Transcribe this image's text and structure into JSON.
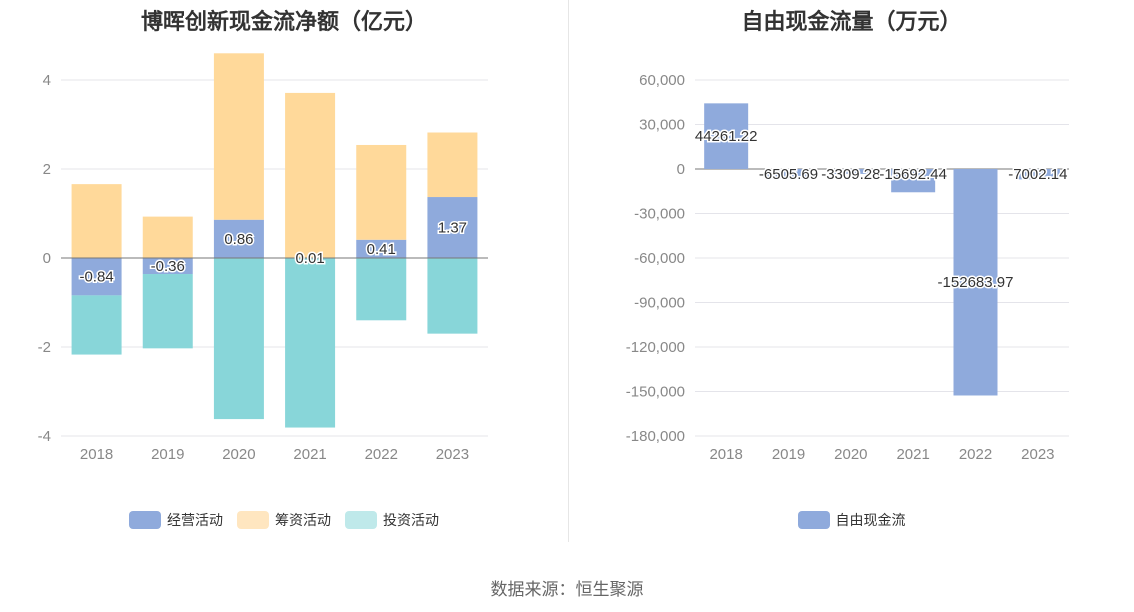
{
  "source_label": "数据来源：恒生聚源",
  "chart_data": [
    {
      "type": "bar",
      "stacked": true,
      "title": "博晖创新现金流净额（亿元）",
      "categories": [
        "2018",
        "2019",
        "2020",
        "2021",
        "2022",
        "2023"
      ],
      "ylim": [
        -4,
        4
      ],
      "yticks": [
        "4",
        "2",
        "0",
        "-2",
        "-4"
      ],
      "series": [
        {
          "name": "经营活动",
          "color": "#8faadc",
          "values": [
            -0.84,
            -0.36,
            0.86,
            0.01,
            0.41,
            1.37
          ],
          "labels": [
            "-0.84",
            "-0.36",
            "0.86",
            "0.01",
            "0.41",
            "1.37"
          ]
        },
        {
          "name": "筹资活动",
          "color": "#ffd99a",
          "legend_color": "#ffe6c0",
          "values": [
            1.66,
            0.93,
            3.74,
            3.7,
            2.13,
            1.45
          ]
        },
        {
          "name": "投资活动",
          "color": "#88d6d9",
          "legend_color": "#bfe9ea",
          "values": [
            -1.33,
            -1.67,
            -3.62,
            -3.81,
            -1.4,
            -1.7
          ]
        }
      ]
    },
    {
      "type": "bar",
      "title": "自由现金流量（万元）",
      "categories": [
        "2018",
        "2019",
        "2020",
        "2021",
        "2022",
        "2023"
      ],
      "ylim": [
        -180000,
        60000
      ],
      "yticks": [
        "60,000",
        "30,000",
        "0",
        "-30,000",
        "-60,000",
        "-90,000",
        "-120,000",
        "-150,000",
        "-180,000"
      ],
      "series": [
        {
          "name": "自由现金流",
          "color": "#8faadc",
          "values": [
            44261.22,
            -6505.69,
            -3309.28,
            -15692.44,
            -152683.97,
            -7002.14
          ],
          "labels": [
            "44261.22",
            "-6505.69",
            "-3309.28",
            "-15692.44",
            "-152683.97",
            "-7002.14"
          ]
        }
      ]
    }
  ]
}
